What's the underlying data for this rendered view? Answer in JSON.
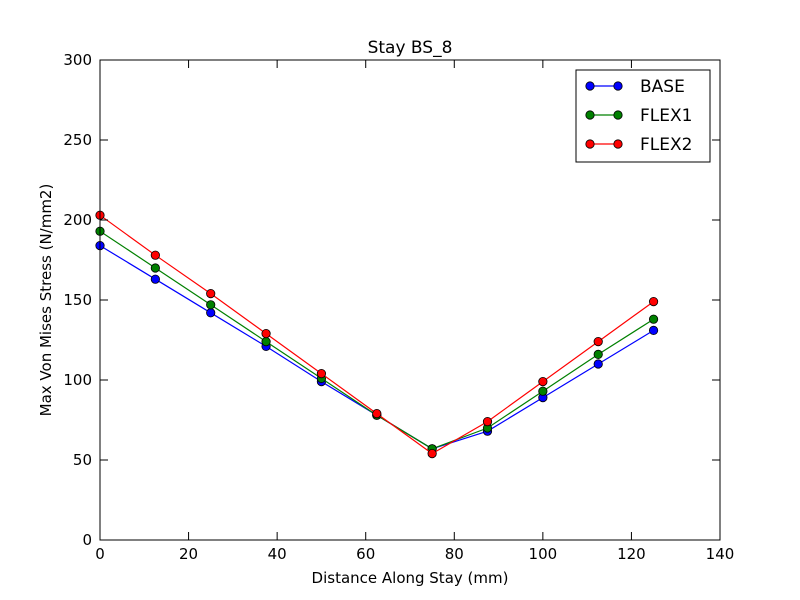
{
  "chart_data": {
    "type": "line",
    "title": "Stay BS_8",
    "xlabel": "Distance Along Stay (mm)",
    "ylabel": "Max Von Mises Stress (N/mm2)",
    "xlim": [
      0,
      140
    ],
    "ylim": [
      0,
      300
    ],
    "xticks": [
      0,
      20,
      40,
      60,
      80,
      100,
      120,
      140
    ],
    "yticks": [
      0,
      50,
      100,
      150,
      200,
      250,
      300
    ],
    "xtick_labels": [
      "0",
      "20",
      "40",
      "60",
      "80",
      "100",
      "120",
      "140"
    ],
    "ytick_labels": [
      "0",
      "50",
      "100",
      "150",
      "200",
      "250",
      "300"
    ],
    "grid": false,
    "legend_position": "top-right",
    "x": [
      0,
      12.5,
      25,
      37.5,
      50,
      62.5,
      75,
      87.5,
      100,
      112.5,
      125
    ],
    "series": [
      {
        "name": "BASE",
        "color": "#0000ff",
        "values": [
          184,
          163,
          142,
          121,
          99,
          78,
          57,
          68,
          89,
          110,
          131
        ]
      },
      {
        "name": "FLEX1",
        "color": "#008000",
        "values": [
          193,
          170,
          147,
          124,
          101,
          78,
          57,
          70,
          93,
          116,
          138
        ]
      },
      {
        "name": "FLEX2",
        "color": "#ff0000",
        "values": [
          203,
          178,
          154,
          129,
          104,
          79,
          54,
          74,
          99,
          124,
          149
        ]
      }
    ]
  }
}
